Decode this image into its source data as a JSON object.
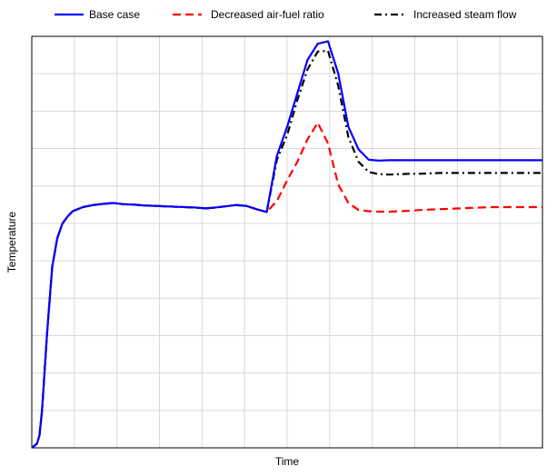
{
  "chart_data": {
    "type": "line",
    "title": "",
    "xlabel": "Time",
    "ylabel": "Temperature",
    "xlim": [
      0,
      100
    ],
    "ylim": [
      0,
      100
    ],
    "x_ticks_labeled": false,
    "y_ticks_labeled": false,
    "grid": true,
    "legend_position": "top",
    "series": [
      {
        "name": "Base case",
        "color": "#0000ff",
        "dash": "solid",
        "x": [
          0,
          1,
          1.5,
          2,
          3,
          4,
          5,
          6,
          7,
          8,
          10,
          12,
          14,
          16,
          18,
          20,
          22,
          24,
          26,
          28,
          30,
          32,
          34,
          36,
          38,
          40,
          42,
          44,
          46,
          48,
          50,
          52,
          54,
          56,
          58,
          60,
          62,
          64,
          66,
          68,
          70,
          72,
          74,
          76,
          78,
          80,
          82,
          84,
          86,
          88,
          90,
          92,
          94,
          96,
          98,
          100
        ],
        "y": [
          0,
          1,
          3,
          9,
          28,
          44,
          51,
          54.5,
          56.2,
          57.5,
          58.5,
          59,
          59.3,
          59.5,
          59.2,
          59.1,
          58.9,
          58.8,
          58.7,
          58.6,
          58.5,
          58.4,
          58.2,
          58.4,
          58.7,
          59,
          58.8,
          58,
          57.3,
          71,
          78,
          86.2,
          94.3,
          98.2,
          98.8,
          91,
          78,
          72.5,
          70,
          69.8,
          69.9,
          69.9,
          69.9,
          69.9,
          69.9,
          69.9,
          69.9,
          69.9,
          69.9,
          69.9,
          69.9,
          69.9,
          69.9,
          69.9,
          69.9,
          69.9
        ]
      },
      {
        "name": "Decreased air-fuel ratio",
        "color": "#ff0000",
        "dash": "dashed",
        "x": [
          0,
          1,
          1.5,
          2,
          3,
          4,
          5,
          6,
          7,
          8,
          10,
          12,
          14,
          16,
          18,
          20,
          22,
          24,
          26,
          28,
          30,
          32,
          34,
          36,
          38,
          40,
          42,
          44,
          46,
          48,
          50,
          52,
          54,
          56,
          58,
          60,
          62,
          64,
          66,
          68,
          70,
          72,
          74,
          76,
          78,
          80,
          82,
          84,
          86,
          88,
          90,
          92,
          94,
          96,
          98,
          100
        ],
        "y": [
          0,
          1,
          3,
          9,
          28,
          44,
          51,
          54.5,
          56.2,
          57.5,
          58.5,
          59,
          59.3,
          59.5,
          59.2,
          59.1,
          58.9,
          58.8,
          58.7,
          58.6,
          58.5,
          58.4,
          58.2,
          58.4,
          58.7,
          59,
          58.8,
          58,
          57.3,
          60,
          65,
          69.5,
          75,
          79,
          74,
          64,
          59.5,
          57.8,
          57.5,
          57.4,
          57.4,
          57.5,
          57.6,
          57.8,
          57.9,
          58,
          58.1,
          58.2,
          58.3,
          58.4,
          58.5,
          58.5,
          58.5,
          58.5,
          58.5,
          58.5
        ]
      },
      {
        "name": "Increased steam flow",
        "color": "#000000",
        "dash": "dashdot",
        "x": [
          0,
          1,
          1.5,
          2,
          3,
          4,
          5,
          6,
          7,
          8,
          10,
          12,
          14,
          16,
          18,
          20,
          22,
          24,
          26,
          28,
          30,
          32,
          34,
          36,
          38,
          40,
          42,
          44,
          46,
          48,
          50,
          52,
          54,
          56,
          58,
          60,
          62,
          64,
          66,
          68,
          70,
          72,
          74,
          76,
          78,
          80,
          82,
          84,
          86,
          88,
          90,
          92,
          94,
          96,
          98,
          100
        ],
        "y": [
          0,
          1,
          3,
          9,
          28,
          44,
          51,
          54.5,
          56.2,
          57.5,
          58.5,
          59,
          59.3,
          59.5,
          59.2,
          59.1,
          58.9,
          58.8,
          58.7,
          58.6,
          58.5,
          58.4,
          58.2,
          58.4,
          58.7,
          59,
          58.8,
          58,
          57.3,
          70,
          76,
          84.5,
          92,
          96.3,
          96.5,
          88,
          75.5,
          69.5,
          67,
          66.5,
          66.4,
          66.5,
          66.6,
          66.6,
          66.7,
          66.8,
          66.8,
          66.8,
          66.8,
          66.8,
          66.8,
          66.8,
          66.8,
          66.8,
          66.8,
          66.8
        ]
      }
    ]
  }
}
